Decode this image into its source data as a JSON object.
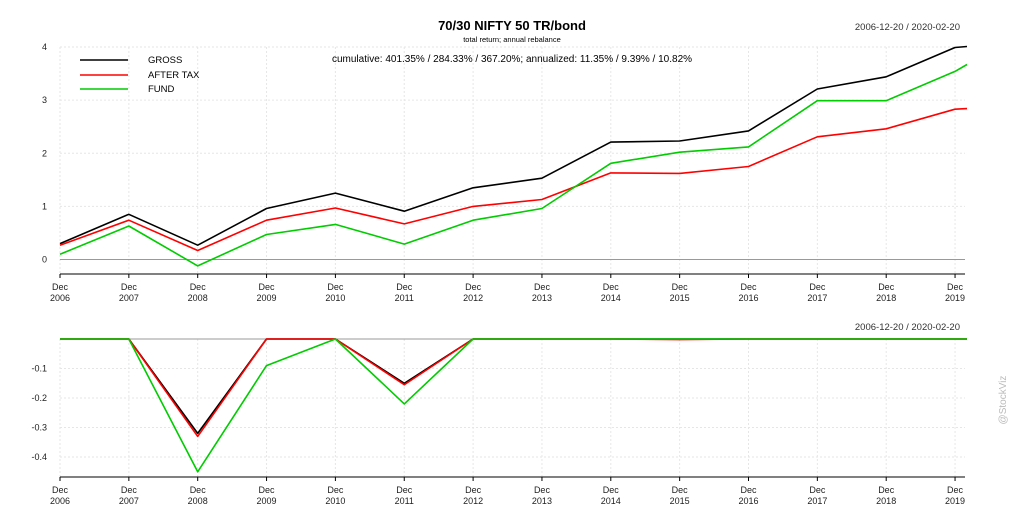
{
  "chart_data": [
    {
      "type": "line",
      "title": "70/30 NIFTY 50 TR/bond",
      "subtitle": "total return; annual rebalance",
      "date_range": "2006-12-20 / 2020-02-20",
      "annotation": "cumulative: 401.35% / 284.33% / 367.20%; annualized: 11.35% / 9.39% / 10.82%",
      "legend_position": "top-left",
      "x": [
        "Dec 2006",
        "Dec 2007",
        "Dec 2008",
        "Dec 2009",
        "Dec 2010",
        "Dec 2011",
        "Dec 2012",
        "Dec 2013",
        "Dec 2014",
        "Dec 2015",
        "Dec 2016",
        "Dec 2017",
        "Dec 2018",
        "Dec 2019",
        "Feb 2020"
      ],
      "x_tick_labels": [
        [
          "Dec",
          "2006"
        ],
        [
          "Dec",
          "2007"
        ],
        [
          "Dec",
          "2008"
        ],
        [
          "Dec",
          "2009"
        ],
        [
          "Dec",
          "2010"
        ],
        [
          "Dec",
          "2011"
        ],
        [
          "Dec",
          "2012"
        ],
        [
          "Dec",
          "2013"
        ],
        [
          "Dec",
          "2014"
        ],
        [
          "Dec",
          "2015"
        ],
        [
          "Dec",
          "2016"
        ],
        [
          "Dec",
          "2017"
        ],
        [
          "Dec",
          "2018"
        ],
        [
          "Dec",
          "2019"
        ]
      ],
      "y_ticks": [
        "0",
        "1",
        "2",
        "3",
        "4"
      ],
      "ylim": [
        -0.25,
        4.0
      ],
      "grid": true,
      "series": [
        {
          "name": "GROSS",
          "color": "#000000",
          "values": [
            0.3,
            0.85,
            0.27,
            0.96,
            1.25,
            0.91,
            1.35,
            1.53,
            2.21,
            2.23,
            2.42,
            3.21,
            3.44,
            3.99,
            4.01
          ]
        },
        {
          "name": "AFTER TAX",
          "color": "#ff0000",
          "values": [
            0.27,
            0.74,
            0.17,
            0.74,
            0.97,
            0.67,
            1.0,
            1.13,
            1.63,
            1.62,
            1.75,
            2.31,
            2.46,
            2.83,
            2.84
          ]
        },
        {
          "name": "FUND",
          "color": "#00cc00",
          "values": [
            0.1,
            0.63,
            -0.12,
            0.47,
            0.66,
            0.29,
            0.74,
            0.96,
            1.81,
            2.02,
            2.12,
            2.99,
            2.99,
            3.54,
            3.67
          ]
        }
      ]
    },
    {
      "type": "line",
      "date_range": "2006-12-20 / 2020-02-20",
      "x": [
        "Dec 2006",
        "Dec 2007",
        "Dec 2008",
        "Dec 2009",
        "Dec 2010",
        "Dec 2011",
        "Dec 2012",
        "Dec 2013",
        "Dec 2014",
        "Dec 2015",
        "Dec 2016",
        "Dec 2017",
        "Dec 2018",
        "Dec 2019",
        "Feb 2020"
      ],
      "x_tick_labels": [
        [
          "Dec",
          "2006"
        ],
        [
          "Dec",
          "2007"
        ],
        [
          "Dec",
          "2008"
        ],
        [
          "Dec",
          "2009"
        ],
        [
          "Dec",
          "2010"
        ],
        [
          "Dec",
          "2011"
        ],
        [
          "Dec",
          "2012"
        ],
        [
          "Dec",
          "2013"
        ],
        [
          "Dec",
          "2014"
        ],
        [
          "Dec",
          "2015"
        ],
        [
          "Dec",
          "2016"
        ],
        [
          "Dec",
          "2017"
        ],
        [
          "Dec",
          "2018"
        ],
        [
          "Dec",
          "2019"
        ]
      ],
      "y_ticks": [
        "-0.1",
        "-0.2",
        "-0.3",
        "-0.4"
      ],
      "ylim": [
        -0.47,
        0.0
      ],
      "grid": true,
      "series": [
        {
          "name": "GROSS",
          "color": "#000000",
          "values": [
            0.0,
            0.0,
            -0.32,
            0.0,
            0.0,
            -0.15,
            0.0,
            0.0,
            0.0,
            0.0,
            0.0,
            0.0,
            0.0,
            0.0,
            0.0
          ]
        },
        {
          "name": "AFTER TAX",
          "color": "#ff0000",
          "values": [
            0.0,
            0.0,
            -0.33,
            0.0,
            0.0,
            -0.155,
            0.0,
            0.0,
            0.0,
            -0.002,
            0.0,
            0.0,
            0.0,
            0.0,
            0.0
          ]
        },
        {
          "name": "FUND",
          "color": "#00cc00",
          "values": [
            0.0,
            0.0,
            -0.45,
            -0.09,
            0.0,
            -0.22,
            0.0,
            0.0,
            0.0,
            0.0,
            0.0,
            0.0,
            0.0,
            0.0,
            0.0
          ]
        }
      ]
    }
  ],
  "watermark": "@StockViz"
}
